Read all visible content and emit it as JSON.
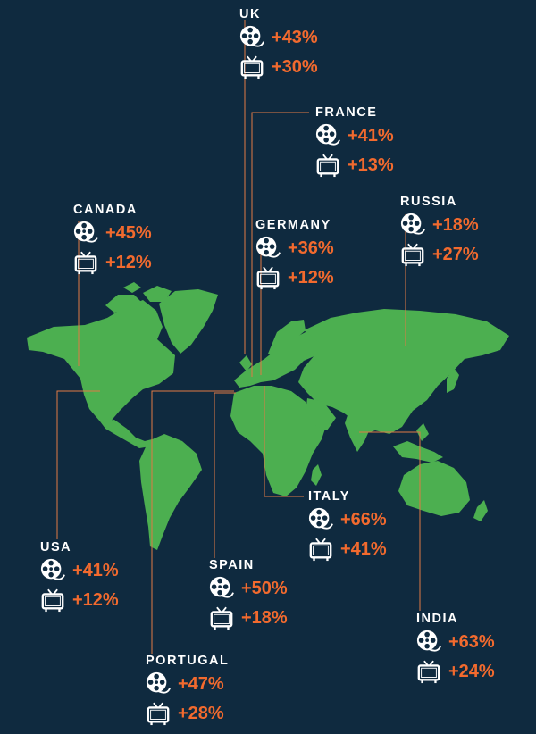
{
  "colors": {
    "background": "#0f2a3f",
    "land": "#4caf50",
    "connector": "#e07a45",
    "value": "#f26a2e",
    "label": "#ffffff"
  },
  "icons": {
    "film": "film-reel-icon",
    "tv": "tv-icon"
  },
  "countries": [
    {
      "key": "uk",
      "name": "UK",
      "film": "+43%",
      "tv": "+30%"
    },
    {
      "key": "france",
      "name": "FRANCE",
      "film": "+41%",
      "tv": "+13%"
    },
    {
      "key": "canada",
      "name": "CANADA",
      "film": "+45%",
      "tv": "+12%"
    },
    {
      "key": "germany",
      "name": "GERMANY",
      "film": "+36%",
      "tv": "+12%"
    },
    {
      "key": "russia",
      "name": "RUSSIA",
      "film": "+18%",
      "tv": "+27%"
    },
    {
      "key": "italy",
      "name": "ITALY",
      "film": "+66%",
      "tv": "+41%"
    },
    {
      "key": "usa",
      "name": "USA",
      "film": "+41%",
      "tv": "+12%"
    },
    {
      "key": "spain",
      "name": "SPAIN",
      "film": "+50%",
      "tv": "+18%"
    },
    {
      "key": "india",
      "name": "INDIA",
      "film": "+63%",
      "tv": "+24%"
    },
    {
      "key": "portugal",
      "name": "PORTUGAL",
      "film": "+47%",
      "tv": "+28%"
    }
  ]
}
